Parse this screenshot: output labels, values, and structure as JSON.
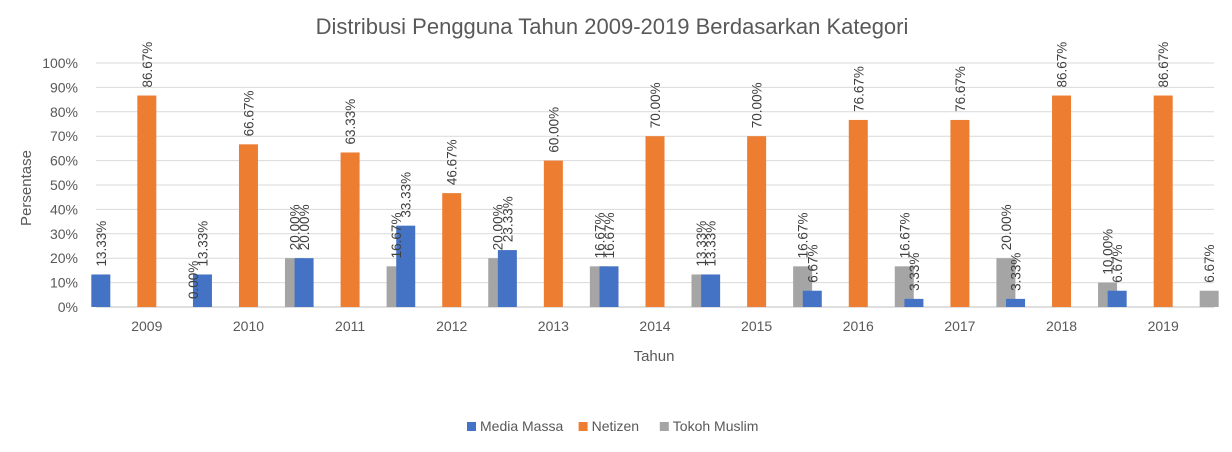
{
  "chart_data": {
    "type": "bar",
    "title": "Distribusi Pengguna Tahun 2009-2019 Berdasarkan Kategori",
    "xlabel": "Tahun",
    "ylabel": "Persentase",
    "ylim": [
      0,
      100
    ],
    "yticks": [
      "0%",
      "10%",
      "20%",
      "30%",
      "40%",
      "50%",
      "60%",
      "70%",
      "80%",
      "90%",
      "100%"
    ],
    "categories": [
      "2009",
      "2010",
      "2011",
      "2012",
      "2013",
      "2014",
      "2015",
      "2016",
      "2017",
      "2018",
      "2019"
    ],
    "grid": true,
    "legend_position": "bottom",
    "series": [
      {
        "name": "Media Massa",
        "color": "#4472c4",
        "values": [
          13.33,
          13.33,
          20.0,
          33.33,
          23.33,
          16.67,
          13.33,
          6.67,
          3.33,
          3.33,
          6.67
        ],
        "labels": [
          "13.33%",
          "13.33%",
          "20.00%",
          "33.33%",
          "23.33%",
          "16.67%",
          "13.33%",
          "6.67%",
          "3.33%",
          "3.33%",
          "6.67%"
        ]
      },
      {
        "name": "Netizen",
        "color": "#ed7d31",
        "values": [
          86.67,
          66.67,
          63.33,
          46.67,
          60.0,
          70.0,
          70.0,
          76.67,
          76.67,
          86.67,
          86.67
        ],
        "labels": [
          "86.67%",
          "66.67%",
          "63.33%",
          "46.67%",
          "60.00%",
          "70.00%",
          "70.00%",
          "76.67%",
          "76.67%",
          "86.67%",
          "86.67%"
        ]
      },
      {
        "name": "Tokoh Muslim",
        "color": "#a5a5a5",
        "values": [
          0.0,
          20.0,
          16.67,
          20.0,
          16.67,
          13.33,
          16.67,
          16.67,
          20.0,
          10.0,
          6.67
        ],
        "labels": [
          "0.00%",
          "20.00%",
          "16.67%",
          "20.00%",
          "16.67%",
          "13.33%",
          "16.67%",
          "16.67%",
          "20.00%",
          "10.00%",
          "6.67%"
        ]
      }
    ]
  }
}
